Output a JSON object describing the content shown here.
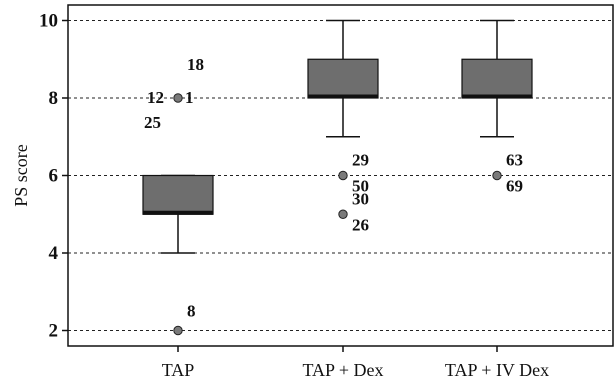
{
  "chart_data": {
    "type": "box",
    "title": "",
    "xlabel": "",
    "ylabel": "PS score",
    "ylim": [
      1.6,
      10.4
    ],
    "yticks": [
      "2",
      "4",
      "6",
      "8",
      "10"
    ],
    "grid": "horizontal dashed at y ticks",
    "colors": {
      "box": "#6e6e6e",
      "median": "#111111",
      "outlier": "#7a7a7a",
      "line": "#111111"
    },
    "categories": [
      "TAP",
      "TAP + Dex",
      "TAP + IV Dex"
    ],
    "boxes": [
      {
        "category": "TAP",
        "whisker_low": 4,
        "q1": 5,
        "median": 5,
        "q3": 6,
        "whisker_high": 6,
        "outliers": [
          {
            "value": 8,
            "labels": [
              "18",
              "12",
              "1",
              "25"
            ]
          },
          {
            "value": 2,
            "labels": [
              "8"
            ]
          }
        ]
      },
      {
        "category": "TAP + Dex",
        "whisker_low": 7,
        "q1": 8,
        "median": 8,
        "q3": 9,
        "whisker_high": 10,
        "outliers": [
          {
            "value": 6,
            "labels": [
              "29",
              "50"
            ]
          },
          {
            "value": 5,
            "labels": [
              "30",
              "26"
            ]
          }
        ]
      },
      {
        "category": "TAP + IV Dex",
        "whisker_low": 7,
        "q1": 8,
        "median": 8,
        "q3": 9,
        "whisker_high": 10,
        "outliers": [
          {
            "value": 6,
            "labels": [
              "63",
              "69"
            ]
          }
        ]
      }
    ]
  }
}
